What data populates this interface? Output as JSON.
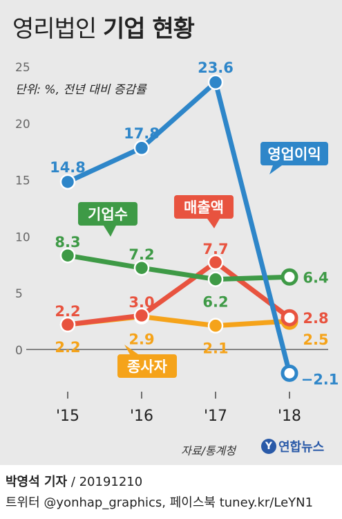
{
  "header": {
    "title_light": "영리법인",
    "title_bold": "기업 현황",
    "unit_note": "단위: %, 전년 대비 증감률"
  },
  "footer": {
    "source": "자료/통계청",
    "logo_text": "연합뉴스",
    "reporter_name": "박영석 기자",
    "reporter_date": "/ 20191210",
    "social": "트위터 @yonhap_graphics, 페이스북 tuney.kr/LeYN1"
  },
  "chart_data": {
    "type": "line",
    "title": "영리법인 기업 현황",
    "categories": [
      "'15",
      "'16",
      "'17",
      "'18"
    ],
    "ylim": [
      -3,
      25
    ],
    "yticks": [
      0,
      5,
      10,
      15,
      20,
      25
    ],
    "grid": false,
    "series": [
      {
        "name": "영업이익",
        "color": "#2e86c9",
        "values": [
          14.8,
          17.8,
          23.6,
          -2.1
        ],
        "labels": [
          "14.8",
          "17.8",
          "23.6",
          "−2.1"
        ]
      },
      {
        "name": "기업수",
        "color": "#3e9a46",
        "values": [
          8.3,
          7.2,
          6.2,
          6.4
        ],
        "labels": [
          "8.3",
          "7.2",
          "6.2",
          "6.4"
        ]
      },
      {
        "name": "매출액",
        "color": "#e8533f",
        "values": [
          2.2,
          3.0,
          7.7,
          2.8
        ],
        "labels": [
          "2.2",
          "3.0",
          "7.7",
          "2.8"
        ]
      },
      {
        "name": "종사자",
        "color": "#f5a31a",
        "values": [
          2.2,
          2.9,
          2.1,
          2.5
        ],
        "labels": [
          "2.2",
          "2.9",
          "2.1",
          "2.5"
        ]
      }
    ]
  }
}
